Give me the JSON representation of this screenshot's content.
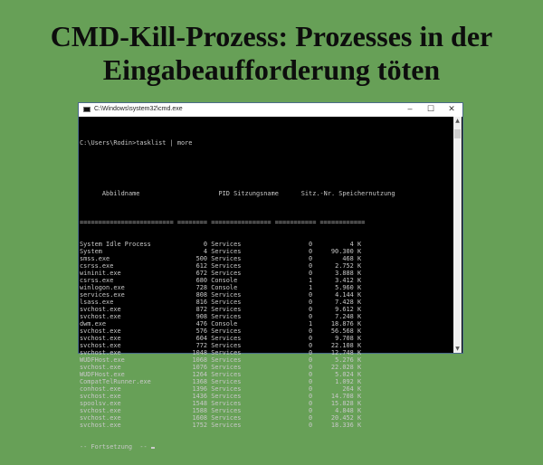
{
  "title": {
    "line1": "CMD-Kill-Prozess: Prozesses in der",
    "line2": "Eingabeaufforderung töten"
  },
  "window": {
    "title": "C:\\Windows\\system32\\cmd.exe",
    "minimize": "–",
    "maximize": "☐",
    "close": "✕"
  },
  "console": {
    "command": "C:\\Users\\Rodin>tasklist | more",
    "headers": [
      "Abbildname",
      "PID",
      "Sitzungsname",
      "Sitz.-Nr.",
      "Speichernutzung"
    ],
    "separator": "========================= ======== ================ =========== ============",
    "rows": [
      [
        "System Idle Process",
        "0",
        "Services",
        "0",
        "4 K"
      ],
      [
        "System",
        "4",
        "Services",
        "0",
        "90.300 K"
      ],
      [
        "smss.exe",
        "500",
        "Services",
        "0",
        "468 K"
      ],
      [
        "csrss.exe",
        "612",
        "Services",
        "0",
        "2.752 K"
      ],
      [
        "wininit.exe",
        "672",
        "Services",
        "0",
        "3.888 K"
      ],
      [
        "csrss.exe",
        "680",
        "Console",
        "1",
        "3.412 K"
      ],
      [
        "winlogon.exe",
        "728",
        "Console",
        "1",
        "5.960 K"
      ],
      [
        "services.exe",
        "808",
        "Services",
        "0",
        "4.144 K"
      ],
      [
        "lsass.exe",
        "816",
        "Services",
        "0",
        "7.428 K"
      ],
      [
        "svchost.exe",
        "872",
        "Services",
        "0",
        "9.612 K"
      ],
      [
        "svchost.exe",
        "908",
        "Services",
        "0",
        "7.248 K"
      ],
      [
        "dwm.exe",
        "476",
        "Console",
        "1",
        "18.876 K"
      ],
      [
        "svchost.exe",
        "576",
        "Services",
        "0",
        "56.568 K"
      ],
      [
        "svchost.exe",
        "604",
        "Services",
        "0",
        "9.708 K"
      ],
      [
        "svchost.exe",
        "772",
        "Services",
        "0",
        "22.108 K"
      ],
      [
        "svchost.exe",
        "1048",
        "Services",
        "0",
        "12.748 K"
      ],
      [
        "WUDFHost.exe",
        "1068",
        "Services",
        "0",
        "5.276 K"
      ],
      [
        "svchost.exe",
        "1076",
        "Services",
        "0",
        "22.028 K"
      ],
      [
        "WUDFHost.exe",
        "1264",
        "Services",
        "0",
        "5.024 K"
      ],
      [
        "CompatTelRunner.exe",
        "1368",
        "Services",
        "0",
        "1.092 K"
      ],
      [
        "conhost.exe",
        "1396",
        "Services",
        "0",
        "264 K"
      ],
      [
        "svchost.exe",
        "1436",
        "Services",
        "0",
        "14.708 K"
      ],
      [
        "spoolsv.exe",
        "1548",
        "Services",
        "0",
        "15.828 K"
      ],
      [
        "svchost.exe",
        "1588",
        "Services",
        "0",
        "4.848 K"
      ],
      [
        "svchost.exe",
        "1608",
        "Services",
        "0",
        "20.452 K"
      ],
      [
        "svchost.exe",
        "1752",
        "Services",
        "0",
        "18.336 K"
      ]
    ],
    "more_prompt": "-- Fortsetzung  -- "
  }
}
